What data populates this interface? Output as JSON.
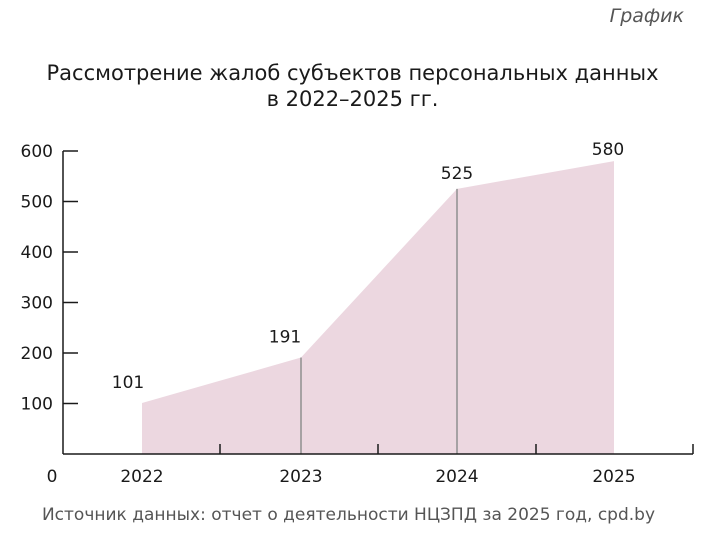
{
  "corner_label": "График",
  "source": "Источник данных: отчет о деятельности НЦЗПД за 2025 год, cpd.by",
  "chart_data": {
    "type": "area",
    "title": "Рассмотрение жалоб субъектов персональных данных",
    "subtitle": "в 2022–2025 гг.",
    "categories": [
      "2022",
      "2023",
      "2024",
      "2025"
    ],
    "values": [
      101,
      191,
      525,
      580
    ],
    "y_ticks": [
      600,
      500,
      400,
      300,
      200,
      100
    ],
    "origin_label": "0",
    "ylim": [
      0,
      600
    ],
    "grid": false,
    "area_color": "#ecd7e0",
    "drop_line_color": "#8f8f8f",
    "axis_color": "#1a1a1a"
  }
}
